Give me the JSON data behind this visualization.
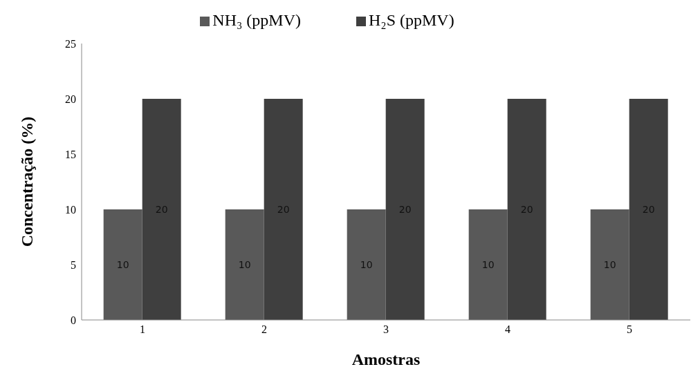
{
  "chart_data": {
    "type": "bar",
    "xlabel": "Amostras",
    "ylabel": "Concentração (%)",
    "categories": [
      "1",
      "2",
      "3",
      "4",
      "5"
    ],
    "series": [
      {
        "name": "NH₃ (ppMV)",
        "color": "#595959",
        "values": [
          10,
          10,
          10,
          10,
          10
        ]
      },
      {
        "name": "H₂S (ppMV)",
        "color": "#3f3f3f",
        "values": [
          20,
          20,
          20,
          20,
          20
        ]
      }
    ],
    "ylim": [
      0,
      25
    ],
    "yticks": [
      0,
      5,
      10,
      15,
      20,
      25
    ],
    "grid": false,
    "legend": "top",
    "data_labels": true
  }
}
